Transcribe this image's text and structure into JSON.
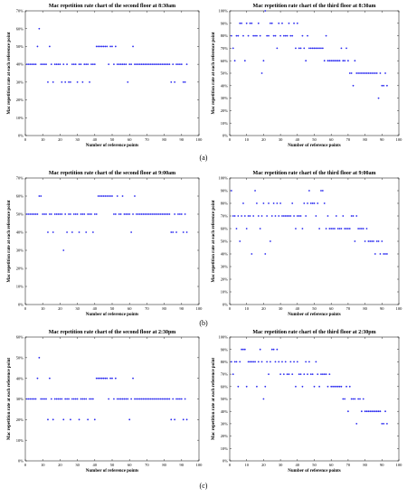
{
  "panel_labels": [
    "(a)",
    "(b)",
    "(c)"
  ],
  "chart_data": [
    {
      "type": "scatter",
      "title": "Mac repetition rate chart of the second floor at 8:30am",
      "xlabel": "Number of reference points",
      "ylabel": "Mac repetition rate at each reference point",
      "xlim": [
        0,
        100
      ],
      "ylim": [
        0,
        0.7
      ],
      "xticks": [
        0,
        10,
        20,
        30,
        40,
        50,
        60,
        70,
        80,
        90,
        100
      ],
      "yticks": [
        0,
        0.1,
        0.2,
        0.3,
        0.4,
        0.5,
        0.6,
        0.7
      ],
      "x": [
        1,
        2,
        3,
        4,
        5,
        6,
        7,
        8,
        9,
        10,
        11,
        12,
        13,
        14,
        15,
        16,
        17,
        18,
        19,
        20,
        21,
        22,
        23,
        24,
        25,
        26,
        27,
        28,
        29,
        30,
        31,
        32,
        33,
        34,
        35,
        36,
        37,
        38,
        39,
        40,
        41,
        42,
        43,
        44,
        45,
        46,
        47,
        48,
        49,
        50,
        51,
        52,
        53,
        54,
        55,
        56,
        57,
        58,
        59,
        60,
        61,
        62,
        63,
        64,
        65,
        66,
        67,
        68,
        69,
        70,
        71,
        72,
        73,
        74,
        75,
        76,
        77,
        78,
        79,
        80,
        81,
        82,
        83,
        84,
        85,
        86,
        87,
        88,
        89,
        90,
        91,
        92,
        93
      ],
      "y": [
        0.4,
        0.4,
        0.4,
        0.4,
        0.4,
        0.4,
        0.5,
        0.6,
        0.4,
        0.4,
        0.4,
        0.4,
        0.3,
        0.5,
        0.4,
        0.3,
        0.4,
        0.4,
        0.4,
        0.4,
        0.3,
        0.4,
        0.3,
        0.4,
        0.3,
        0.3,
        0.4,
        0.4,
        0.4,
        0.3,
        0.4,
        0.4,
        0.3,
        0.4,
        0.4,
        0.4,
        0.3,
        0.4,
        0.4,
        0.4,
        0.5,
        0.5,
        0.5,
        0.5,
        0.5,
        0.5,
        0.5,
        0.4,
        0.5,
        0.5,
        0.4,
        0.5,
        0.4,
        0.4,
        0.4,
        0.4,
        0.4,
        0.4,
        0.3,
        0.4,
        0.4,
        0.5,
        0.4,
        0.4,
        0.4,
        0.4,
        0.4,
        0.4,
        0.4,
        0.4,
        0.4,
        0.4,
        0.4,
        0.4,
        0.4,
        0.4,
        0.4,
        0.4,
        0.4,
        0.4,
        0.4,
        0.4,
        0.4,
        0.3,
        0.4,
        0.3,
        0.4,
        0.4,
        0.4,
        0.4,
        0.3,
        0.3,
        0.4
      ]
    },
    {
      "type": "scatter",
      "title": "Mac repetition rate chart of the third floor at 8:30am",
      "xlabel": "Number of reference points",
      "ylabel": "Mac repetition rate at each reference point",
      "xlim": [
        0,
        100
      ],
      "ylim": [
        0,
        1.0
      ],
      "xticks": [
        0,
        10,
        20,
        30,
        40,
        50,
        60,
        70,
        80,
        90,
        100
      ],
      "yticks": [
        0,
        0.1,
        0.2,
        0.3,
        0.4,
        0.5,
        0.6,
        0.7,
        0.8,
        0.9,
        1.0
      ],
      "x": [
        1,
        2,
        3,
        4,
        5,
        6,
        7,
        8,
        9,
        10,
        11,
        12,
        13,
        14,
        15,
        16,
        17,
        18,
        19,
        20,
        21,
        22,
        23,
        24,
        25,
        26,
        27,
        28,
        29,
        30,
        31,
        32,
        33,
        34,
        35,
        36,
        37,
        38,
        39,
        40,
        41,
        42,
        43,
        44,
        45,
        46,
        47,
        48,
        49,
        50,
        51,
        52,
        53,
        54,
        55,
        56,
        57,
        58,
        59,
        60,
        61,
        62,
        63,
        64,
        65,
        66,
        67,
        68,
        69,
        70,
        71,
        72,
        73,
        74,
        75,
        76,
        77,
        78,
        79,
        80,
        81,
        82,
        83,
        84,
        85,
        86,
        87,
        88,
        89,
        90,
        91,
        92,
        93
      ],
      "y": [
        0.8,
        0.7,
        0.6,
        0.8,
        0.8,
        0.9,
        0.9,
        0.8,
        0.6,
        0.9,
        0.8,
        0.9,
        0.9,
        0.8,
        0.8,
        0.8,
        0.9,
        0.8,
        0.5,
        0.6,
        1.0,
        0.8,
        0.8,
        0.9,
        0.9,
        0.8,
        0.8,
        0.7,
        0.9,
        0.8,
        0.9,
        0.8,
        0.8,
        0.8,
        0.9,
        0.8,
        0.8,
        0.9,
        0.7,
        0.9,
        0.7,
        0.7,
        0.8,
        0.7,
        0.6,
        0.8,
        0.7,
        0.7,
        0.7,
        0.7,
        0.7,
        0.7,
        0.7,
        0.7,
        0.7,
        0.6,
        0.8,
        0.6,
        0.6,
        0.6,
        0.6,
        0.6,
        0.6,
        0.6,
        0.6,
        0.7,
        0.6,
        0.6,
        0.7,
        0.6,
        0.5,
        0.5,
        0.4,
        0.6,
        0.5,
        0.5,
        0.5,
        0.5,
        0.5,
        0.5,
        0.5,
        0.5,
        0.5,
        0.5,
        0.5,
        0.5,
        0.5,
        0.3,
        0.5,
        0.4,
        0.4,
        0.5,
        0.4
      ]
    },
    {
      "type": "scatter",
      "title": "Mac repetition rate chart of the second floor at 9:00am",
      "xlabel": "Number of reference points",
      "ylabel": "Mac repetition rate at each reference point",
      "xlim": [
        0,
        100
      ],
      "ylim": [
        0,
        0.7
      ],
      "xticks": [
        0,
        10,
        20,
        30,
        40,
        50,
        60,
        70,
        80,
        90,
        100
      ],
      "yticks": [
        0,
        0.1,
        0.2,
        0.3,
        0.4,
        0.5,
        0.6,
        0.7
      ],
      "x": [
        1,
        2,
        3,
        4,
        5,
        6,
        7,
        8,
        9,
        10,
        11,
        12,
        13,
        14,
        15,
        16,
        17,
        18,
        19,
        20,
        21,
        22,
        23,
        24,
        25,
        26,
        27,
        28,
        29,
        30,
        31,
        32,
        33,
        34,
        35,
        36,
        37,
        38,
        39,
        40,
        41,
        42,
        43,
        44,
        45,
        46,
        47,
        48,
        49,
        50,
        51,
        52,
        53,
        54,
        55,
        56,
        57,
        58,
        59,
        60,
        61,
        62,
        63,
        64,
        65,
        66,
        67,
        68,
        69,
        70,
        71,
        72,
        73,
        74,
        75,
        76,
        77,
        78,
        79,
        80,
        81,
        82,
        83,
        84,
        85,
        86,
        87,
        88,
        89,
        90,
        91,
        92,
        93
      ],
      "y": [
        0.5,
        0.5,
        0.5,
        0.5,
        0.5,
        0.5,
        0.5,
        0.6,
        0.6,
        0.5,
        0.5,
        0.5,
        0.4,
        0.5,
        0.5,
        0.4,
        0.5,
        0.5,
        0.5,
        0.5,
        0.5,
        0.3,
        0.5,
        0.4,
        0.5,
        0.5,
        0.4,
        0.5,
        0.5,
        0.5,
        0.4,
        0.5,
        0.5,
        0.5,
        0.4,
        0.5,
        0.5,
        0.5,
        0.4,
        0.5,
        0.5,
        0.6,
        0.6,
        0.6,
        0.6,
        0.6,
        0.6,
        0.6,
        0.6,
        0.6,
        0.5,
        0.5,
        0.6,
        0.5,
        0.5,
        0.6,
        0.5,
        0.5,
        0.5,
        0.5,
        0.4,
        0.5,
        0.6,
        0.5,
        0.5,
        0.5,
        0.5,
        0.5,
        0.5,
        0.5,
        0.5,
        0.5,
        0.5,
        0.5,
        0.5,
        0.5,
        0.5,
        0.5,
        0.5,
        0.5,
        0.5,
        0.5,
        0.5,
        0.4,
        0.4,
        0.5,
        0.4,
        0.5,
        0.5,
        0.5,
        0.4,
        0.5,
        0.4
      ]
    },
    {
      "type": "scatter",
      "title": "Mac repetition rate chart of the third floor at 9:00am",
      "xlabel": "Number of reference points",
      "ylabel": "Mac repetition rate at each reference point",
      "xlim": [
        0,
        100
      ],
      "ylim": [
        0,
        1.0
      ],
      "xticks": [
        0,
        10,
        20,
        30,
        40,
        50,
        60,
        70,
        80,
        90,
        100
      ],
      "yticks": [
        0,
        0.1,
        0.2,
        0.3,
        0.4,
        0.5,
        0.6,
        0.7,
        0.8,
        0.9,
        1.0
      ],
      "x": [
        1,
        2,
        3,
        4,
        5,
        6,
        7,
        8,
        9,
        10,
        11,
        12,
        13,
        14,
        15,
        16,
        17,
        18,
        19,
        20,
        21,
        22,
        23,
        24,
        25,
        26,
        27,
        28,
        29,
        30,
        31,
        32,
        33,
        34,
        35,
        36,
        37,
        38,
        39,
        40,
        41,
        42,
        43,
        44,
        45,
        46,
        47,
        48,
        49,
        50,
        51,
        52,
        53,
        54,
        55,
        56,
        57,
        58,
        59,
        60,
        61,
        62,
        63,
        64,
        65,
        66,
        67,
        68,
        69,
        70,
        71,
        72,
        73,
        74,
        75,
        76,
        77,
        78,
        79,
        80,
        81,
        82,
        83,
        84,
        85,
        86,
        87,
        88,
        89,
        90,
        91,
        92,
        93
      ],
      "y": [
        0.9,
        0.7,
        0.7,
        0.6,
        0.7,
        0.5,
        0.7,
        0.8,
        0.7,
        0.6,
        0.7,
        0.7,
        0.4,
        0.7,
        0.9,
        0.8,
        0.7,
        0.6,
        0.7,
        0.8,
        0.4,
        0.7,
        0.8,
        0.5,
        0.7,
        0.8,
        0.7,
        0.8,
        0.7,
        0.8,
        0.7,
        0.7,
        0.7,
        0.7,
        0.7,
        0.7,
        0.8,
        0.7,
        0.6,
        0.7,
        0.7,
        0.7,
        0.6,
        0.8,
        0.7,
        0.8,
        0.9,
        0.8,
        0.8,
        0.8,
        0.7,
        0.8,
        0.6,
        0.9,
        0.9,
        0.8,
        0.6,
        0.7,
        0.6,
        0.6,
        0.6,
        0.6,
        0.7,
        0.6,
        0.6,
        0.6,
        0.7,
        0.6,
        0.6,
        0.6,
        0.6,
        0.7,
        0.7,
        0.5,
        0.7,
        0.6,
        0.6,
        0.6,
        0.6,
        0.5,
        0.6,
        0.5,
        0.5,
        0.5,
        0.5,
        0.4,
        0.5,
        0.5,
        0.4,
        0.5,
        0.4,
        0.4,
        0.4
      ]
    },
    {
      "type": "scatter",
      "title": "Mac repetition rate chart of the second floor at 2:30pm",
      "xlabel": "Number of reference points",
      "ylabel": "Mac repetition rate at each reference point",
      "xlim": [
        0,
        100
      ],
      "ylim": [
        0,
        0.6
      ],
      "xticks": [
        0,
        10,
        20,
        30,
        40,
        50,
        60,
        70,
        80,
        90,
        100
      ],
      "yticks": [
        0,
        0.1,
        0.2,
        0.3,
        0.4,
        0.5,
        0.6
      ],
      "x": [
        1,
        2,
        3,
        4,
        5,
        6,
        7,
        8,
        9,
        10,
        11,
        12,
        13,
        14,
        15,
        16,
        17,
        18,
        19,
        20,
        21,
        22,
        23,
        24,
        25,
        26,
        27,
        28,
        29,
        30,
        31,
        32,
        33,
        34,
        35,
        36,
        37,
        38,
        39,
        40,
        41,
        42,
        43,
        44,
        45,
        46,
        47,
        48,
        49,
        50,
        51,
        52,
        53,
        54,
        55,
        56,
        57,
        58,
        59,
        60,
        61,
        62,
        63,
        64,
        65,
        66,
        67,
        68,
        69,
        70,
        71,
        72,
        73,
        74,
        75,
        76,
        77,
        78,
        79,
        80,
        81,
        82,
        83,
        84,
        85,
        86,
        87,
        88,
        89,
        90,
        91,
        92,
        93
      ],
      "y": [
        0.3,
        0.3,
        0.3,
        0.3,
        0.3,
        0.3,
        0.4,
        0.5,
        0.3,
        0.3,
        0.3,
        0.3,
        0.2,
        0.4,
        0.3,
        0.2,
        0.3,
        0.3,
        0.3,
        0.3,
        0.3,
        0.2,
        0.3,
        0.3,
        0.3,
        0.2,
        0.3,
        0.3,
        0.3,
        0.3,
        0.2,
        0.3,
        0.3,
        0.3,
        0.3,
        0.2,
        0.3,
        0.3,
        0.3,
        0.2,
        0.4,
        0.4,
        0.4,
        0.4,
        0.4,
        0.4,
        0.4,
        0.3,
        0.4,
        0.4,
        0.3,
        0.4,
        0.3,
        0.3,
        0.3,
        0.3,
        0.3,
        0.3,
        0.3,
        0.2,
        0.3,
        0.4,
        0.3,
        0.3,
        0.3,
        0.3,
        0.3,
        0.3,
        0.3,
        0.3,
        0.3,
        0.3,
        0.3,
        0.3,
        0.3,
        0.3,
        0.3,
        0.3,
        0.3,
        0.3,
        0.3,
        0.3,
        0.3,
        0.2,
        0.3,
        0.2,
        0.3,
        0.3,
        0.3,
        0.3,
        0.2,
        0.3,
        0.2
      ]
    },
    {
      "type": "scatter",
      "title": "Mac repetition rate chart of the third floor at 2:30pm",
      "xlabel": "Number of reference points",
      "ylabel": "Mac repetition rate at each reference point",
      "xlim": [
        0,
        100
      ],
      "ylim": [
        0,
        1.0
      ],
      "xticks": [
        0,
        10,
        20,
        30,
        40,
        50,
        60,
        70,
        80,
        90,
        100
      ],
      "yticks": [
        0,
        0.1,
        0.2,
        0.3,
        0.4,
        0.5,
        0.6,
        0.7,
        0.8,
        0.9,
        1.0
      ],
      "x": [
        1,
        2,
        3,
        4,
        5,
        6,
        7,
        8,
        9,
        10,
        11,
        12,
        13,
        14,
        15,
        16,
        17,
        18,
        19,
        20,
        21,
        22,
        23,
        24,
        25,
        26,
        27,
        28,
        29,
        30,
        31,
        32,
        33,
        34,
        35,
        36,
        37,
        38,
        39,
        40,
        41,
        42,
        43,
        44,
        45,
        46,
        47,
        48,
        49,
        50,
        51,
        52,
        53,
        54,
        55,
        56,
        57,
        58,
        59,
        60,
        61,
        62,
        63,
        64,
        65,
        66,
        67,
        68,
        69,
        70,
        71,
        72,
        73,
        74,
        75,
        76,
        77,
        78,
        79,
        80,
        81,
        82,
        83,
        84,
        85,
        86,
        87,
        88,
        89,
        90,
        91,
        92,
        93
      ],
      "y": [
        0.8,
        0.7,
        0.8,
        0.8,
        0.6,
        0.8,
        0.9,
        0.9,
        0.9,
        0.6,
        0.8,
        0.8,
        0.8,
        0.8,
        0.8,
        0.6,
        0.8,
        0.9,
        0.8,
        0.5,
        0.6,
        0.8,
        0.7,
        0.8,
        0.9,
        0.9,
        0.8,
        0.9,
        0.8,
        0.7,
        0.8,
        0.7,
        0.8,
        0.7,
        0.7,
        0.8,
        0.7,
        0.8,
        0.6,
        0.8,
        0.7,
        0.7,
        0.6,
        0.7,
        0.8,
        0.7,
        0.8,
        0.7,
        0.7,
        0.6,
        0.8,
        0.7,
        0.6,
        0.7,
        0.7,
        0.7,
        0.7,
        0.6,
        0.7,
        0.6,
        0.6,
        0.6,
        0.6,
        0.6,
        0.6,
        0.6,
        0.5,
        0.5,
        0.6,
        0.4,
        0.6,
        0.5,
        0.5,
        0.5,
        0.3,
        0.5,
        0.5,
        0.4,
        0.5,
        0.4,
        0.4,
        0.4,
        0.4,
        0.4,
        0.4,
        0.4,
        0.4,
        0.4,
        0.4,
        0.3,
        0.3,
        0.4,
        0.3
      ]
    }
  ]
}
